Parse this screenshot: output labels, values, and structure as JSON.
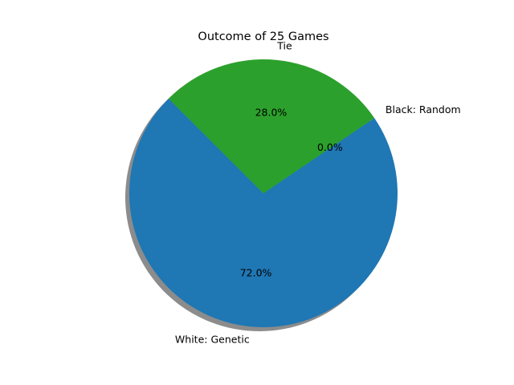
{
  "chart_data": {
    "type": "pie",
    "title": "Outcome of 25 Games",
    "slices": [
      {
        "label": "White: Genetic",
        "value": 72.0,
        "pct_label": "72.0%",
        "color": "#1f77b4"
      },
      {
        "label": "Black: Random",
        "value": 0.0,
        "pct_label": "0.0%",
        "color": "#ff7f0e"
      },
      {
        "label": "Tie",
        "value": 28.0,
        "pct_label": "28.0%",
        "color": "#2ca02c"
      }
    ],
    "shadow": true,
    "start_angle_deg": 135,
    "direction": "counterclockwise"
  }
}
